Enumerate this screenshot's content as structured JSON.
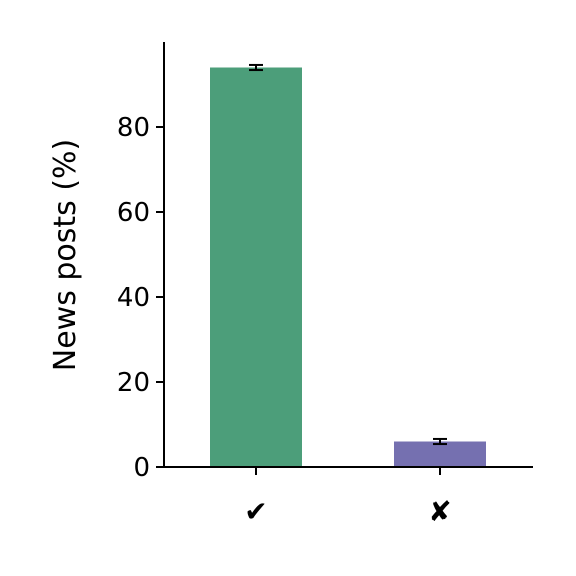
{
  "chart_data": {
    "type": "bar",
    "categories": [
      "✔",
      "✘"
    ],
    "values": [
      94.0,
      6.0
    ],
    "errors": [
      0.6,
      0.6
    ],
    "colors": [
      "#4c9e7a",
      "#7570b0"
    ],
    "title": "",
    "xlabel": "",
    "ylabel": "News posts (%)",
    "ylim": [
      0,
      100
    ],
    "yticks": [
      0,
      20,
      40,
      60,
      80
    ],
    "grid": false,
    "legend": "none"
  }
}
